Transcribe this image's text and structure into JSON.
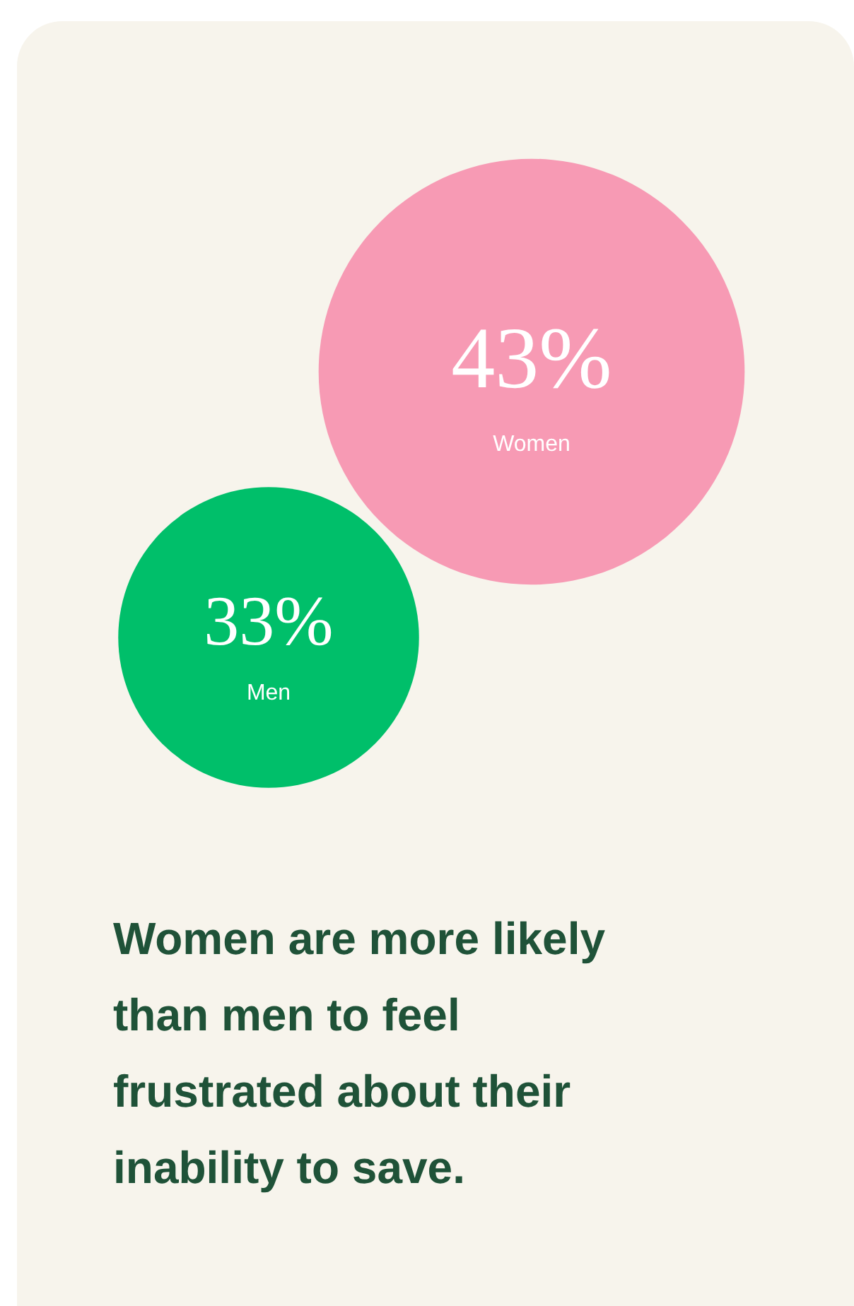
{
  "chart_data": {
    "type": "other",
    "title": "Women are more likely than men to feel frustrated about their inability to save.",
    "categories": [
      "Women",
      "Men"
    ],
    "values": [
      43,
      33
    ],
    "value_labels": [
      "43%",
      "33%"
    ],
    "colors": [
      "#f79ab4",
      "#00bf6a"
    ]
  }
}
